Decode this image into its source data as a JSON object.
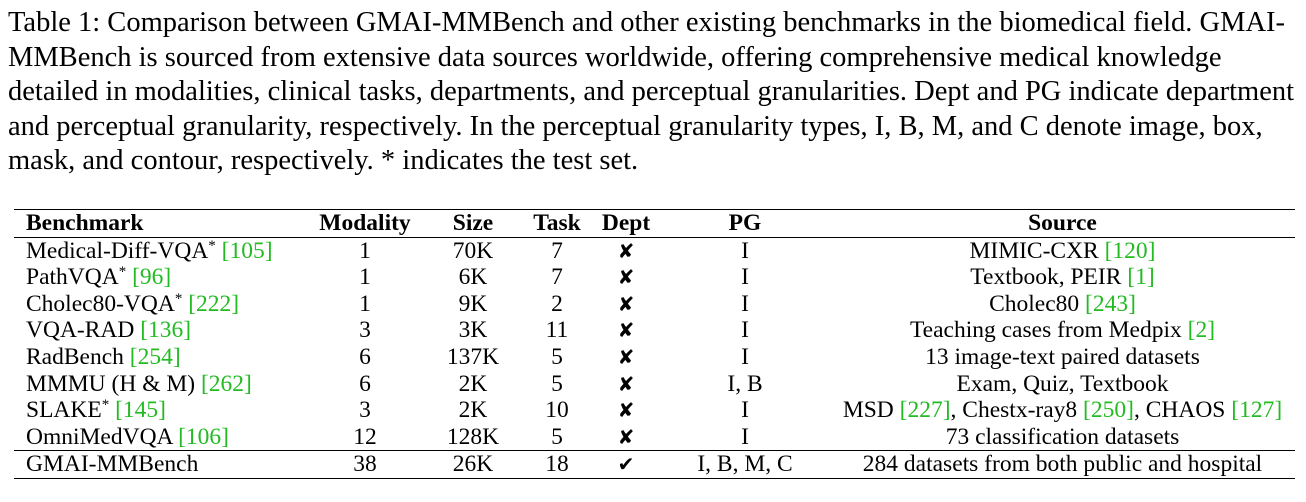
{
  "caption": "Table 1: Comparison between GMAI-MMBench and other existing benchmarks in the biomedical field. GMAI-MMBench is sourced from extensive data sources worldwide, offering comprehensive medical knowledge detailed in modalities, clinical tasks, departments, and perceptual granularities. Dept and PG indicate department and perceptual granularity, respectively. In the perceptual granularity types, I, B, M, and C denote image, box, mask, and contour, respectively. * indicates the test set.",
  "columns": [
    "Benchmark",
    "Modality",
    "Size",
    "Task",
    "Dept",
    "PG",
    "Source"
  ],
  "rows": [
    {
      "name": "Medical-Diff-VQA",
      "star": "*",
      "cite": "[105]",
      "modality": "1",
      "size": "70K",
      "task": "7",
      "dept": "✘",
      "pg": "I",
      "source_parts": [
        {
          "t": "MIMIC-CXR "
        },
        {
          "c": "[120]"
        }
      ]
    },
    {
      "name": "PathVQA",
      "star": "*",
      "cite": "[96]",
      "modality": "1",
      "size": "6K",
      "task": "7",
      "dept": "✘",
      "pg": "I",
      "source_parts": [
        {
          "t": "Textbook, PEIR "
        },
        {
          "c": "[1]"
        }
      ]
    },
    {
      "name": "Cholec80-VQA",
      "star": "*",
      "cite": "[222]",
      "modality": "1",
      "size": "9K",
      "task": "2",
      "dept": "✘",
      "pg": "I",
      "source_parts": [
        {
          "t": "Cholec80 "
        },
        {
          "c": "[243]"
        }
      ]
    },
    {
      "name": "VQA-RAD",
      "star": "",
      "cite": "[136]",
      "modality": "3",
      "size": "3K",
      "task": "11",
      "dept": "✘",
      "pg": "I",
      "source_parts": [
        {
          "t": "Teaching cases from Medpix "
        },
        {
          "c": "[2]"
        }
      ]
    },
    {
      "name": "RadBench",
      "star": "",
      "cite": "[254]",
      "modality": "6",
      "size": "137K",
      "task": "5",
      "dept": "✘",
      "pg": "I",
      "source_parts": [
        {
          "t": "13 image-text paired datasets"
        }
      ]
    },
    {
      "name": "MMMU (H & M)",
      "star": "",
      "cite": "[262]",
      "modality": "6",
      "size": "2K",
      "task": "5",
      "dept": "✘",
      "pg": "I, B",
      "source_parts": [
        {
          "t": "Exam, Quiz, Textbook"
        }
      ]
    },
    {
      "name": "SLAKE",
      "star": "*",
      "cite": "[145]",
      "modality": "3",
      "size": "2K",
      "task": "10",
      "dept": "✘",
      "pg": "I",
      "source_parts": [
        {
          "t": "MSD "
        },
        {
          "c": "[227]"
        },
        {
          "t": ", Chestx-ray8 "
        },
        {
          "c": "[250]"
        },
        {
          "t": ", CHAOS "
        },
        {
          "c": "[127]"
        }
      ]
    },
    {
      "name": "OmniMedVQA",
      "star": "",
      "cite": "[106]",
      "modality": "12",
      "size": "128K",
      "task": "5",
      "dept": "✘",
      "pg": "I",
      "source_parts": [
        {
          "t": "73 classification datasets"
        }
      ]
    },
    {
      "name": "GMAI-MMBench",
      "star": "",
      "cite": "",
      "modality": "38",
      "size": "26K",
      "task": "18",
      "dept": "✔",
      "pg": "I, B, M, C",
      "source_parts": [
        {
          "t": "284 datasets from both public and hospital"
        }
      ]
    }
  ],
  "colors": {
    "citation": "#22bb22",
    "text": "#000000"
  }
}
